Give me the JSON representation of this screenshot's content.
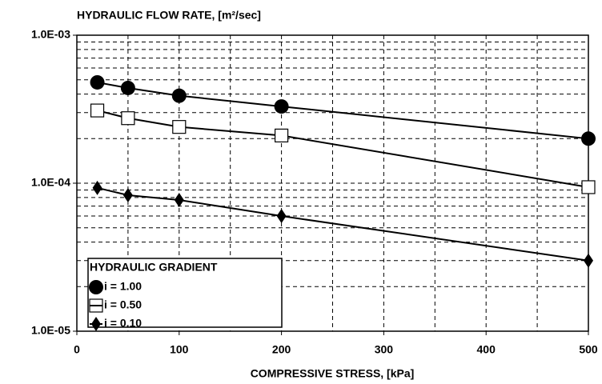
{
  "chart_data": {
    "type": "line",
    "title": "HYDRAULIC FLOW RATE, [m²/sec]",
    "x_label": "COMPRESSIVE STRESS, [kPa]",
    "legend_title": "HYDRAULIC GRADIENT",
    "legend": "lower-left",
    "x": [
      20,
      50,
      100,
      200,
      500
    ],
    "series": [
      {
        "name": "i = 1.00",
        "color": "#000000",
        "marker": "circle",
        "values": [
          0.00048,
          0.00044,
          0.00039,
          0.00033,
          0.0002
        ]
      },
      {
        "name": "i = 0.50",
        "color": "#000000",
        "marker": "square",
        "values": [
          0.00031,
          0.000275,
          0.00024,
          0.00021,
          9.4e-05
        ]
      },
      {
        "name": "i = 0.10",
        "color": "#000000",
        "marker": "diamond",
        "values": [
          9.3e-05,
          8.3e-05,
          7.7e-05,
          6e-05,
          3e-05
        ]
      }
    ],
    "xlim": [
      0,
      500
    ],
    "xticks": [
      0,
      100,
      200,
      300,
      400,
      500
    ],
    "ylim": [
      1e-05,
      0.001
    ],
    "yticks": [
      {
        "value": 1e-05,
        "label": "1.0E-05"
      },
      {
        "value": 0.0001,
        "label": "1.0E-04"
      },
      {
        "value": 0.001,
        "label": "1.0E-03"
      }
    ],
    "ylog": true,
    "grid": true,
    "minor_grid": true
  }
}
